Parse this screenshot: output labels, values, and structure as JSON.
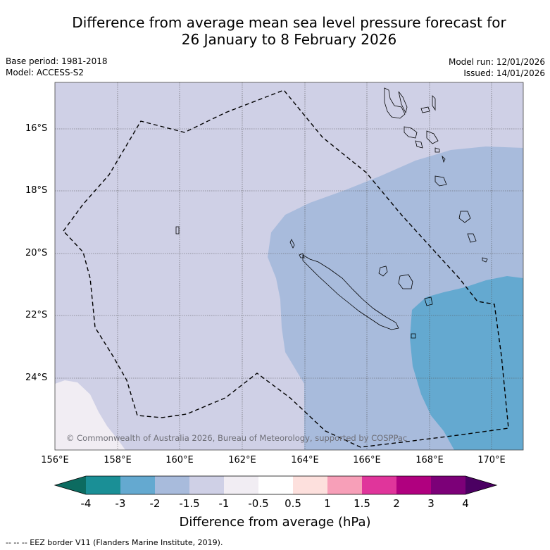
{
  "title": {
    "line1": "Difference from average mean sea level pressure forecast for",
    "line2": "26 January to 8 February 2026"
  },
  "meta": {
    "base_period": "Base period: 1981-2018",
    "model": "Model: ACCESS-S2",
    "model_run": "Model run: 12/01/2026",
    "issued": "Issued: 14/01/2026"
  },
  "map": {
    "lat_labels": [
      "16°S",
      "18°S",
      "20°S",
      "22°S",
      "24°S"
    ],
    "lon_labels": [
      "156°E",
      "158°E",
      "160°E",
      "162°E",
      "164°E",
      "166°E",
      "168°E",
      "170°E"
    ],
    "copyright": "© Commonwealth of Australia 2026, Bureau of Meteorology, supported by COSPPac",
    "extent": {
      "lon_min": 156,
      "lon_max": 171,
      "lat_min": -26.2,
      "lat_max": -14.5
    }
  },
  "colorbar": {
    "title": "Difference from average (hPa)",
    "tick_labels": [
      "-4",
      "-3",
      "-2",
      "-1.5",
      "-1",
      "-0.5",
      "0.5",
      "1",
      "1.5",
      "2",
      "3",
      "4"
    ],
    "colors": [
      "#1a8f96",
      "#64a9d0",
      "#a8bbdc",
      "#cfd0e6",
      "#f1edf3",
      "#ffffff",
      "#fde0dd",
      "#f79fb8",
      "#e0359b",
      "#b0007f",
      "#7c0078"
    ],
    "extend_low_color": "#0c6b60",
    "extend_high_color": "#4b0062"
  },
  "footnote": "--  --  -- EEZ border V11 (Flanders Marine Institute, 2019)."
}
